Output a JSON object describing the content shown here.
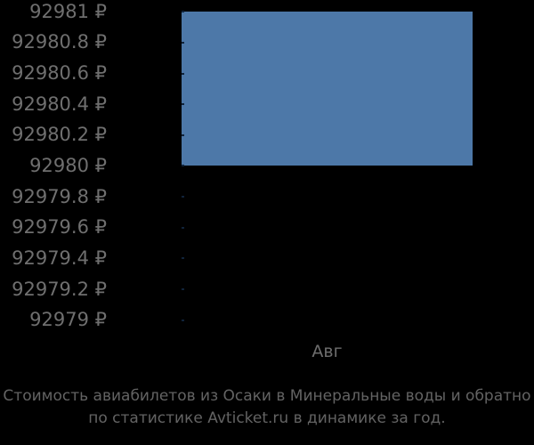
{
  "chart_data": {
    "type": "bar",
    "title": "",
    "categories": [
      "Авг"
    ],
    "series": [
      {
        "name": "Стоимость авиабилетов",
        "values": [
          92981
        ]
      }
    ],
    "bar_value_span": {
      "from": 92980,
      "to": 92981
    },
    "y_ticks": [
      "92981 ₽",
      "92980.8 ₽",
      "92980.6 ₽",
      "92980.4 ₽",
      "92980.2 ₽",
      "92980 ₽",
      "92979.8 ₽",
      "92979.6 ₽",
      "92979.4 ₽",
      "92979.2 ₽",
      "92979 ₽"
    ],
    "ylim": [
      92979,
      92981
    ],
    "y_tick_step": 0.2,
    "currency_symbol": "₽",
    "xlabel": "",
    "ylabel": "",
    "legend_position": "none",
    "grid": false,
    "colors": {
      "bar": "#4d78a8",
      "background": "#000000",
      "axis_label": "#6f6f6f",
      "x_label": "#6e6e6e",
      "caption": "#636363"
    }
  },
  "x_axis": {
    "label": "Авг"
  },
  "caption": {
    "line1": "Стоимость авиабилетов из Осаки в Минеральные воды и обратно",
    "line2": "по статистике Avticket.ru в динамике за год."
  }
}
